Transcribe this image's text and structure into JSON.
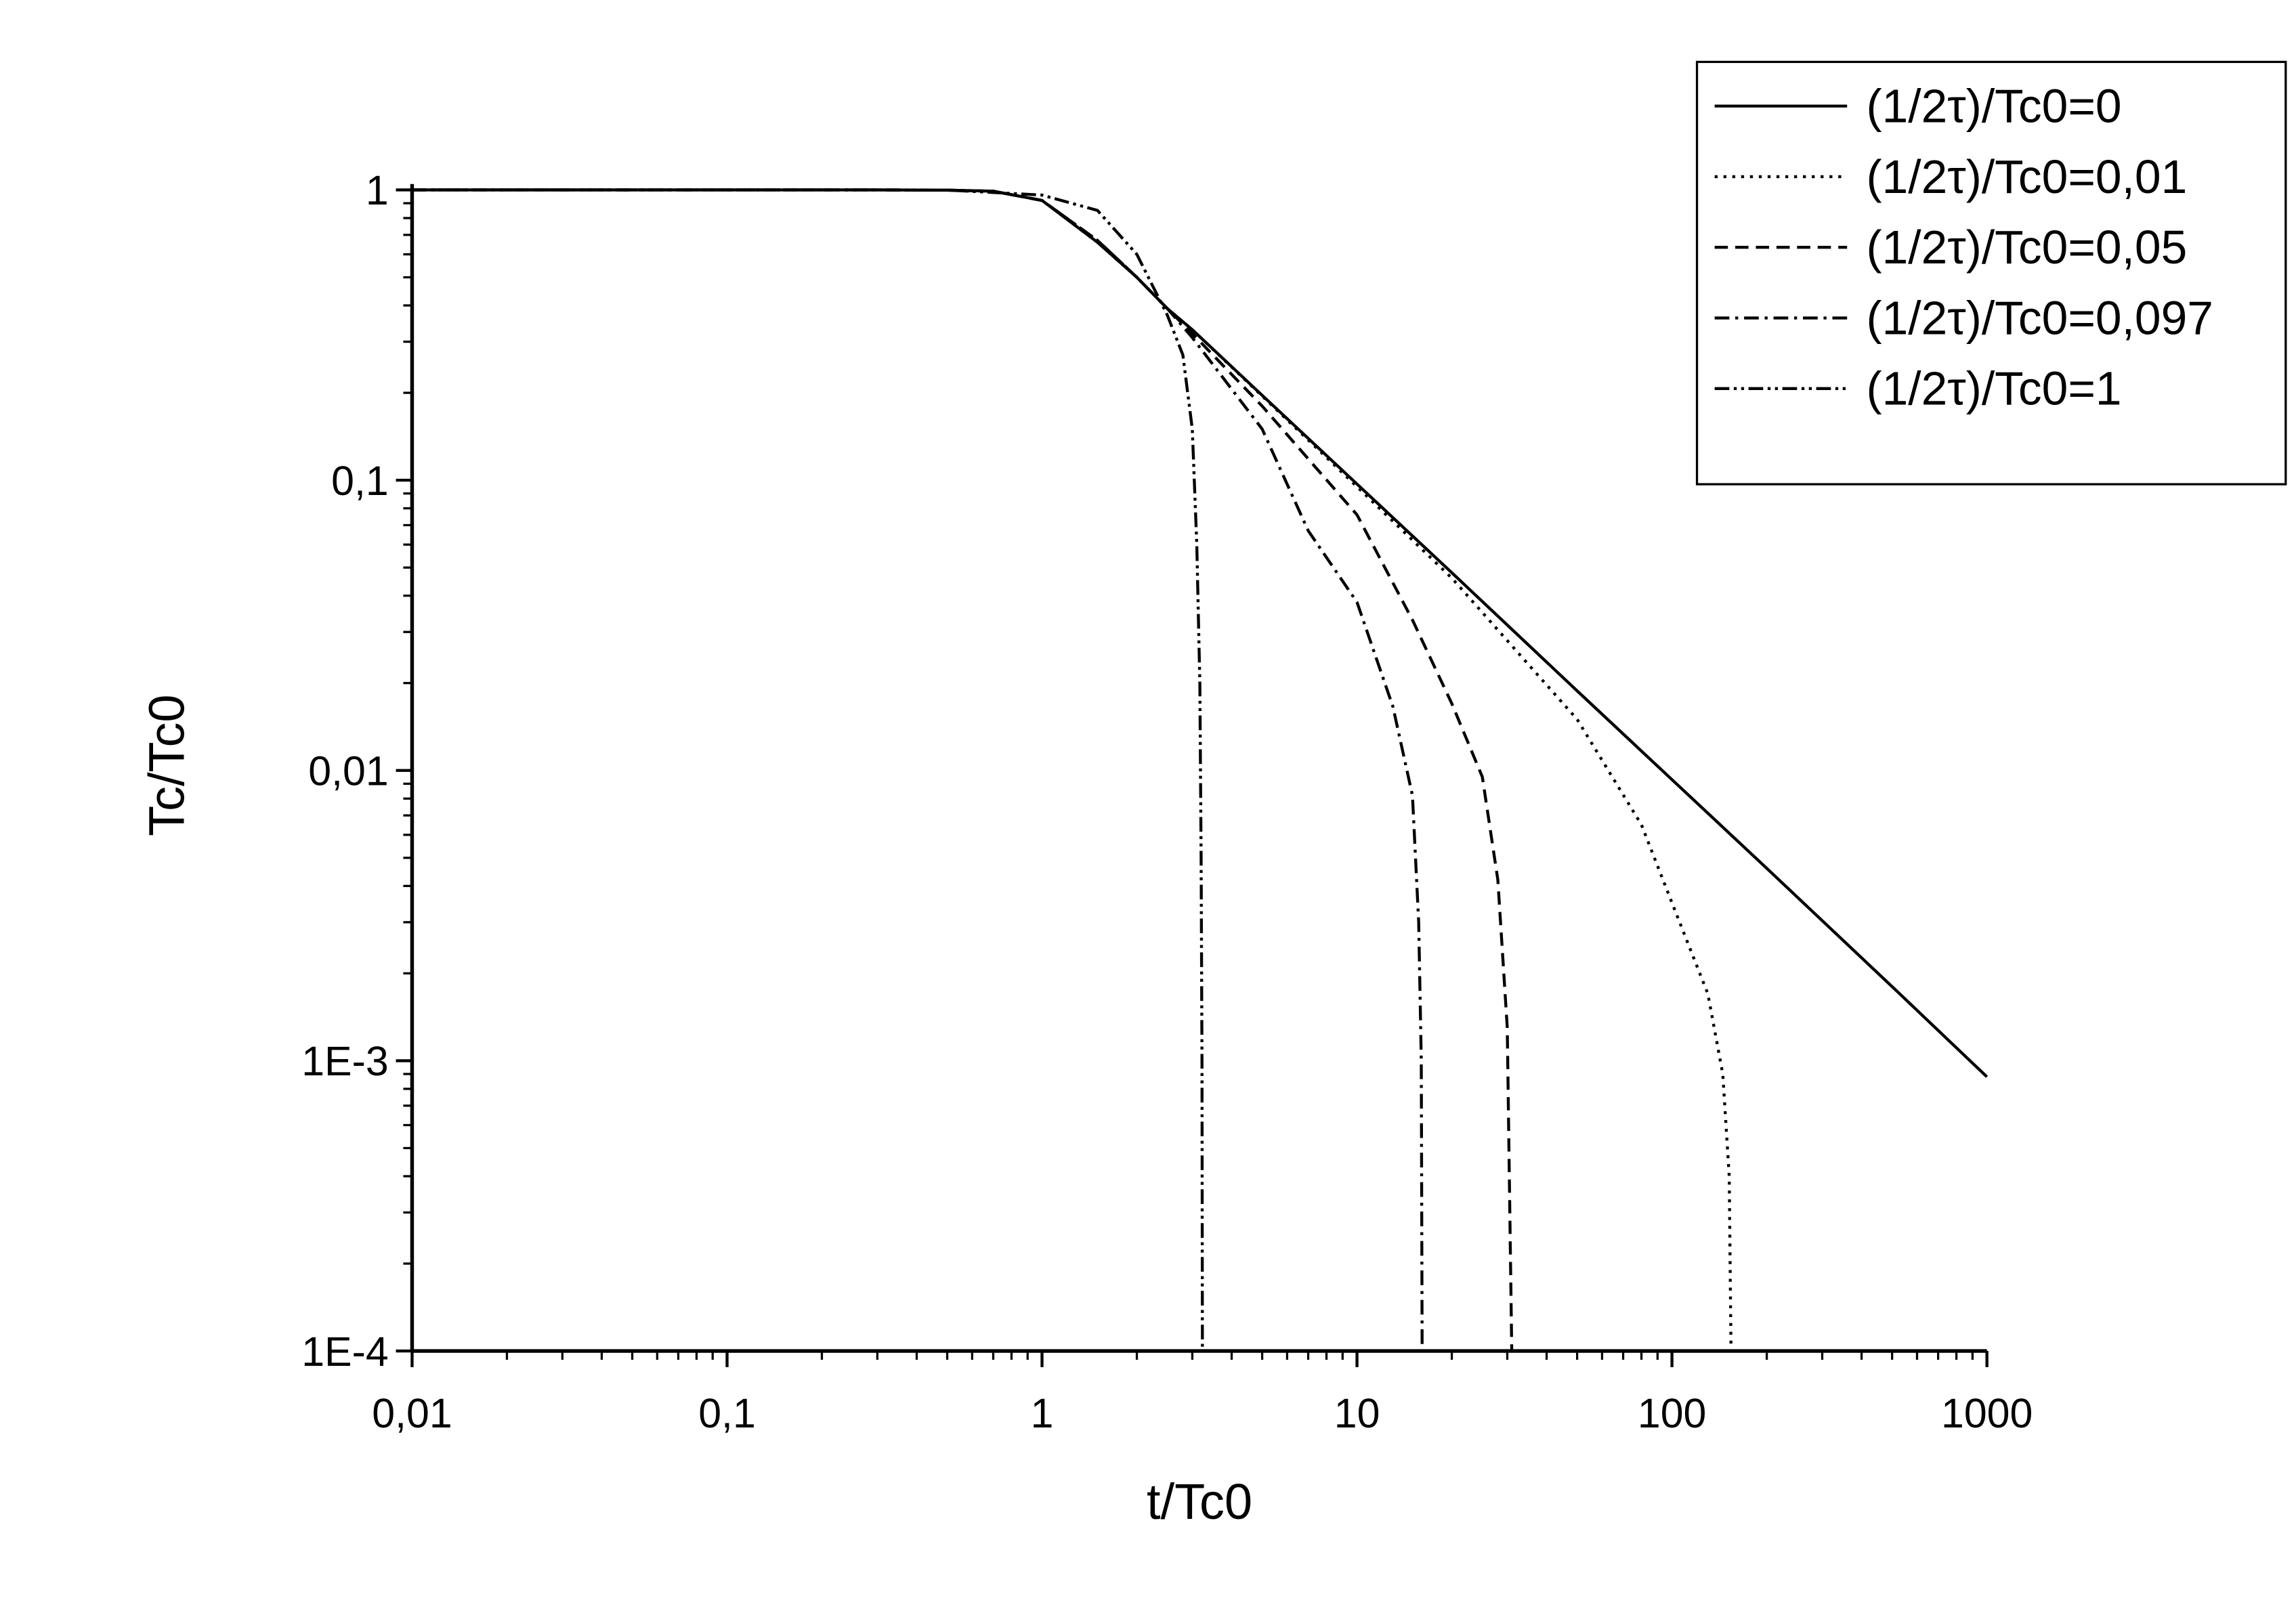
{
  "chart_data": {
    "type": "line",
    "x_label": "t/Tc0",
    "y_label": "Tc/Tc0",
    "x_scale": "log",
    "y_scale": "log",
    "xlim": [
      0.01,
      1000
    ],
    "ylim": [
      0.0001,
      1
    ],
    "xticks": [
      {
        "value": 0.01,
        "label": "0,01"
      },
      {
        "value": 0.1,
        "label": "0,1"
      },
      1,
      10,
      100,
      1000
    ],
    "yticks": [
      {
        "value": 0.0001,
        "label": "1E-4"
      },
      {
        "value": 0.001,
        "label": "1E-3"
      },
      {
        "value": 0.01,
        "label": "0,01"
      },
      {
        "value": 0.1,
        "label": "0,1"
      },
      1
    ],
    "legend": "top-right",
    "series": [
      {
        "name": "(1/2τ)/Tc0=0",
        "color": "#000000",
        "dash": "solid",
        "x": [
          0.01,
          0.1,
          0.3,
          0.5,
          0.7,
          1,
          1.5,
          2,
          2.5,
          3,
          5,
          10,
          20,
          50,
          100,
          200,
          500,
          1000
        ],
        "values": [
          1,
          1,
          1,
          0.998,
          0.99,
          0.92,
          0.66,
          0.5,
          0.39,
          0.33,
          0.196,
          0.097,
          0.048,
          0.0188,
          0.0093,
          0.0046,
          0.0018,
          0.00088
        ]
      },
      {
        "name": "(1/2τ)/Tc0=0,01",
        "color": "#000000",
        "dash": "dot",
        "x": [
          0.01,
          0.1,
          0.3,
          0.5,
          0.7,
          1,
          1.5,
          2,
          2.5,
          3,
          5,
          10,
          20,
          50,
          80,
          100,
          130,
          145,
          152,
          154
        ],
        "values": [
          1,
          1,
          1,
          0.998,
          0.99,
          0.92,
          0.66,
          0.5,
          0.39,
          0.33,
          0.195,
          0.095,
          0.046,
          0.015,
          0.0065,
          0.0035,
          0.0017,
          0.0009,
          0.0004,
          0.0001
        ]
      },
      {
        "name": "(1/2τ)/Tc0=0,05",
        "color": "#000000",
        "dash": "dash",
        "x": [
          0.01,
          0.1,
          0.3,
          0.5,
          0.7,
          1,
          1.5,
          2,
          2.5,
          3,
          5,
          10,
          15,
          20,
          25,
          28,
          30,
          31
        ],
        "values": [
          1,
          1,
          1,
          0.998,
          0.99,
          0.92,
          0.67,
          0.5,
          0.39,
          0.32,
          0.18,
          0.076,
          0.033,
          0.017,
          0.0095,
          0.0042,
          0.0013,
          0.0001
        ]
      },
      {
        "name": "(1/2τ)/Tc0=0,097",
        "color": "#000000",
        "dash": "dashdot",
        "x": [
          0.01,
          0.1,
          0.3,
          0.5,
          0.7,
          1,
          1.5,
          2,
          2.5,
          3,
          5,
          7,
          10,
          13,
          15,
          15.7,
          16,
          16.1
        ],
        "values": [
          1,
          1,
          1,
          0.998,
          0.99,
          0.92,
          0.67,
          0.5,
          0.39,
          0.31,
          0.15,
          0.067,
          0.038,
          0.0166,
          0.0082,
          0.003,
          0.001,
          0.0001
        ]
      },
      {
        "name": "(1/2τ)/Tc0=1",
        "color": "#000000",
        "dash": "dashdotdot",
        "x": [
          0.01,
          0.1,
          0.3,
          0.5,
          1,
          1.5,
          2,
          2.5,
          2.8,
          3,
          3.1,
          3.17,
          3.2,
          3.22,
          3.23
        ],
        "values": [
          1,
          1,
          1,
          0.999,
          0.96,
          0.85,
          0.6,
          0.37,
          0.27,
          0.15,
          0.06,
          0.02,
          0.005,
          0.001,
          0.0001
        ]
      }
    ]
  }
}
